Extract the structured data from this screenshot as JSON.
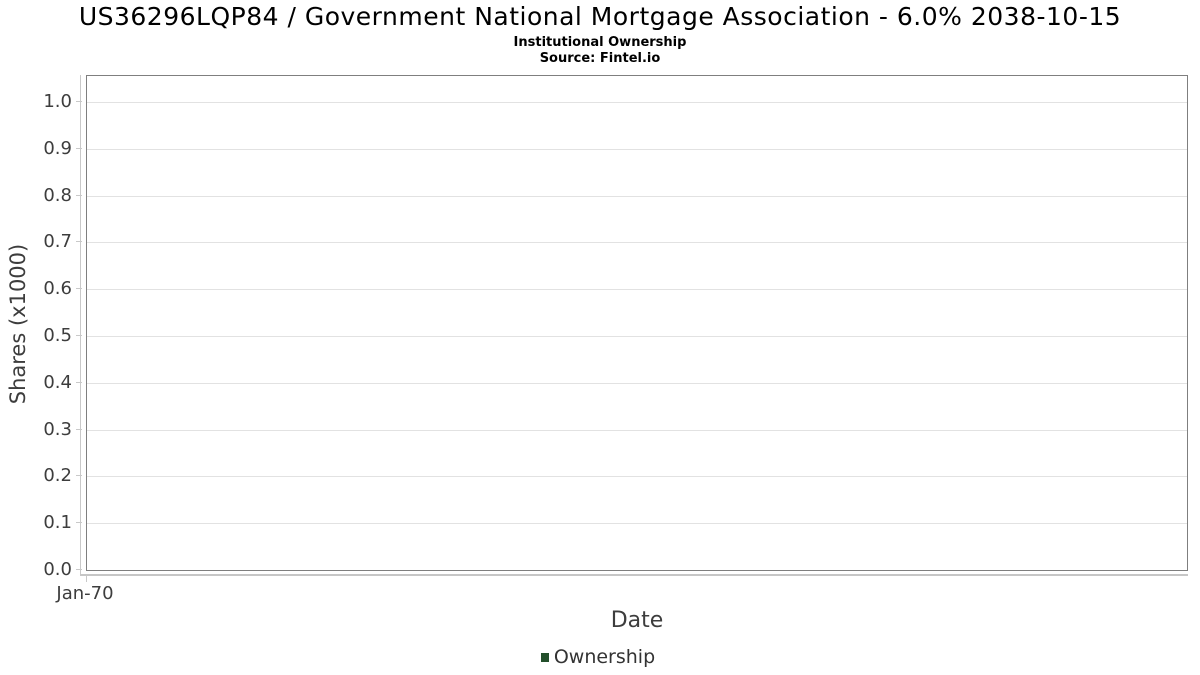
{
  "chart_data": {
    "type": "line",
    "title": "US36296LQP84 / Government National Mortgage Association - 6.0% 2038-10-15",
    "subtitle": "Institutional Ownership",
    "source": "Source: Fintel.io",
    "xlabel": "Date",
    "ylabel": "Shares (x1000)",
    "xticks": [
      "Jan-70"
    ],
    "yticks": [
      {
        "label": "0.0",
        "value": 0.0
      },
      {
        "label": "0.1",
        "value": 0.1
      },
      {
        "label": "0.2",
        "value": 0.2
      },
      {
        "label": "0.3",
        "value": 0.3
      },
      {
        "label": "0.4",
        "value": 0.4
      },
      {
        "label": "0.5",
        "value": 0.5
      },
      {
        "label": "0.6",
        "value": 0.6
      },
      {
        "label": "0.7",
        "value": 0.7
      },
      {
        "label": "0.8",
        "value": 0.8
      },
      {
        "label": "0.9",
        "value": 0.9
      },
      {
        "label": "1.0",
        "value": 1.0
      }
    ],
    "ylim": [
      0.0,
      1.06
    ],
    "grid": "horizontal",
    "legend_position": "bottom-center",
    "legend": [
      {
        "label": "Ownership",
        "color": "#234f2b"
      }
    ],
    "series": [
      {
        "name": "Ownership",
        "points": []
      }
    ]
  },
  "colors": {
    "plot_border": "#7f7f7f",
    "gridline": "#e2e2e2",
    "axis_line": "#c9c9c9",
    "tick_text": "#3d3d3d",
    "title_text": "#000000",
    "legend_green": "#234f2b"
  }
}
